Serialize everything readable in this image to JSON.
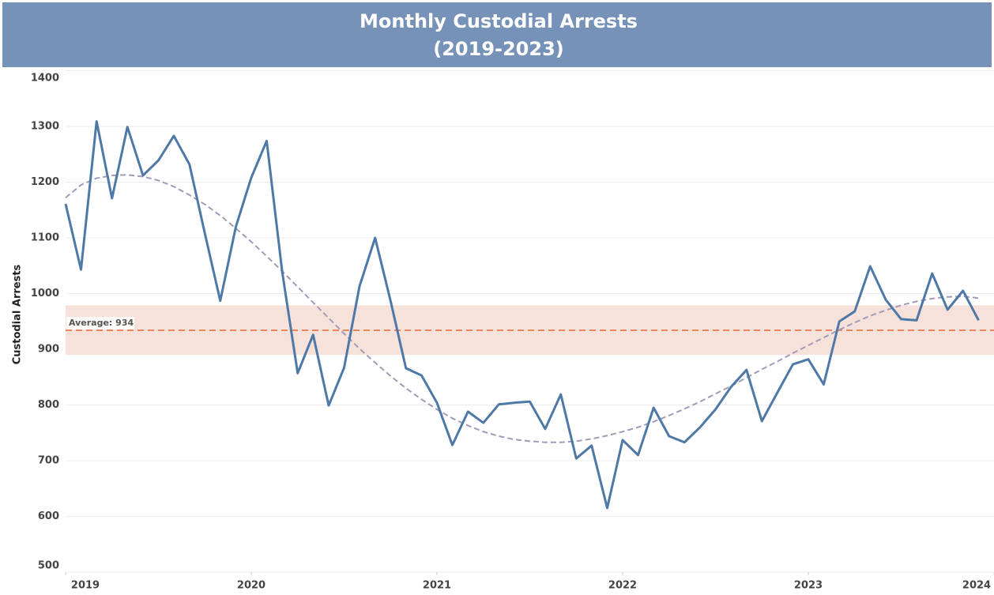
{
  "chart_data": {
    "type": "line",
    "title": "Monthly Custodial Arrests",
    "subtitle": "(2019-2023)",
    "y_label": "Custodial Arrests",
    "x": [
      2019,
      2019.083,
      2019.167,
      2019.25,
      2019.333,
      2019.417,
      2019.5,
      2019.583,
      2019.667,
      2019.75,
      2019.833,
      2019.917,
      2020,
      2020.083,
      2020.167,
      2020.25,
      2020.333,
      2020.417,
      2020.5,
      2020.583,
      2020.667,
      2020.75,
      2020.833,
      2020.917,
      2021,
      2021.083,
      2021.167,
      2021.25,
      2021.333,
      2021.417,
      2021.5,
      2021.583,
      2021.667,
      2021.75,
      2021.833,
      2021.917,
      2022,
      2022.083,
      2022.167,
      2022.25,
      2022.333,
      2022.417,
      2022.5,
      2022.583,
      2022.667,
      2022.75,
      2022.833,
      2022.917,
      2023,
      2023.083,
      2023.167,
      2023.25,
      2023.333,
      2023.417,
      2023.5,
      2023.583,
      2023.667,
      2023.75,
      2023.833,
      2023.917
    ],
    "series": [
      {
        "name": "Custodial Arrests",
        "color": "#4e79a7",
        "values": [
          1161,
          1043,
          1309,
          1171,
          1299,
          1212,
          1239,
          1283,
          1232,
          1108,
          987,
          1120,
          1208,
          1274,
          1038,
          857,
          926,
          799,
          867,
          1013,
          1100,
          987,
          866,
          853,
          804,
          728,
          788,
          768,
          801,
          804,
          806,
          757,
          819,
          704,
          727,
          615,
          737,
          710,
          795,
          744,
          733,
          760,
          792,
          832,
          863,
          771,
          822,
          873,
          882,
          837,
          950,
          968,
          1049,
          989,
          954,
          952,
          1036,
          971,
          1005,
          952
        ]
      },
      {
        "name": "Trend",
        "color": "#a49ab8",
        "values": [
          1172,
          1195,
          1207,
          1212,
          1213,
          1210,
          1203,
          1192,
          1177,
          1160,
          1140,
          1117,
          1093,
          1067,
          1040,
          1012,
          984,
          956,
          928,
          901,
          876,
          852,
          830,
          810,
          792,
          776,
          763,
          752,
          744,
          738,
          735,
          733,
          733,
          735,
          739,
          745,
          752,
          760,
          770,
          781,
          793,
          806,
          820,
          834,
          849,
          864,
          878,
          893,
          907,
          921,
          935,
          948,
          960,
          970,
          979,
          986,
          991,
          994,
          995,
          992
        ]
      }
    ],
    "reference_line": {
      "value": 934,
      "label": "Average: 934",
      "color": "#e8875f"
    },
    "reference_band": {
      "values": [
        890,
        979
      ],
      "color": "#f6e2db"
    },
    "xlim": [
      2019,
      2024
    ],
    "xticks": [
      2019,
      2020,
      2021,
      2022,
      2023,
      2024
    ],
    "ylim": [
      500,
      1400
    ],
    "yticks": [
      500,
      600,
      700,
      800,
      900,
      1000,
      1100,
      1200,
      1300,
      1400
    ],
    "grid": true
  }
}
